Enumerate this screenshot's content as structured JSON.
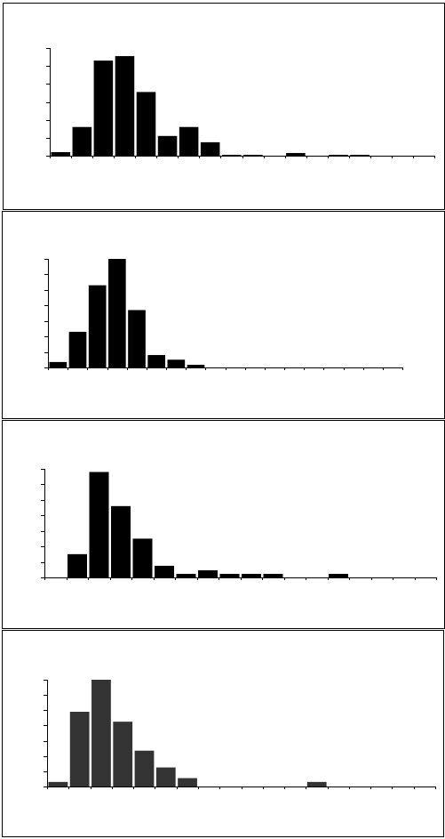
{
  "chart_data": [
    {
      "type": "bar",
      "categories": [
        null,
        null,
        null,
        null,
        null,
        null,
        null,
        null,
        null,
        null,
        null,
        null,
        null,
        null,
        null,
        null,
        null,
        null
      ],
      "values": [
        0.2,
        1.6,
        5.3,
        5.55,
        3.55,
        1.1,
        1.6,
        0.75,
        0.05,
        0.05,
        0,
        0.15,
        0,
        0.05,
        0.05,
        0,
        0,
        0
      ],
      "color": "#000000",
      "ylim": [
        0,
        6
      ],
      "yticks": [
        0,
        1,
        2,
        3,
        4,
        5,
        6
      ]
    },
    {
      "type": "bar",
      "categories": [
        null,
        null,
        null,
        null,
        null,
        null,
        null,
        null,
        null,
        null,
        null,
        null,
        null,
        null,
        null,
        null,
        null,
        null
      ],
      "values": [
        0.35,
        2.3,
        5.3,
        7,
        3.7,
        0.8,
        0.5,
        0.17,
        0,
        0,
        0,
        0,
        0,
        0,
        0,
        0,
        0,
        0
      ],
      "color": "#000000",
      "ylim": [
        0,
        7
      ],
      "yticks": [
        0,
        1,
        2,
        3,
        4,
        5,
        6,
        7
      ]
    },
    {
      "type": "bar",
      "categories": [
        null,
        null,
        null,
        null,
        null,
        null,
        null,
        null,
        null,
        null,
        null,
        null,
        null,
        null,
        null,
        null,
        null,
        null
      ],
      "values": [
        0,
        1.5,
        6.8,
        4.6,
        2.5,
        0.75,
        0.23,
        0.46,
        0.23,
        0.23,
        0.23,
        0,
        0,
        0.23,
        0,
        0,
        0,
        0
      ],
      "color": "#000000",
      "ylim": [
        0,
        7
      ],
      "yticks": [
        0,
        1,
        2,
        3,
        4,
        5,
        6,
        7
      ]
    },
    {
      "type": "bar",
      "categories": [
        null,
        null,
        null,
        null,
        null,
        null,
        null,
        null,
        null,
        null,
        null,
        null,
        null,
        null,
        null,
        null,
        null,
        null
      ],
      "values": [
        0.3,
        4.9,
        7,
        4.25,
        2.35,
        1.25,
        0.55,
        0,
        0,
        0,
        0,
        0,
        0.3,
        0,
        0,
        0,
        0,
        0
      ],
      "color": "#333333",
      "ylim": [
        0,
        7
      ],
      "yticks": [
        0,
        1,
        2,
        3,
        4,
        5,
        6,
        7
      ]
    }
  ]
}
